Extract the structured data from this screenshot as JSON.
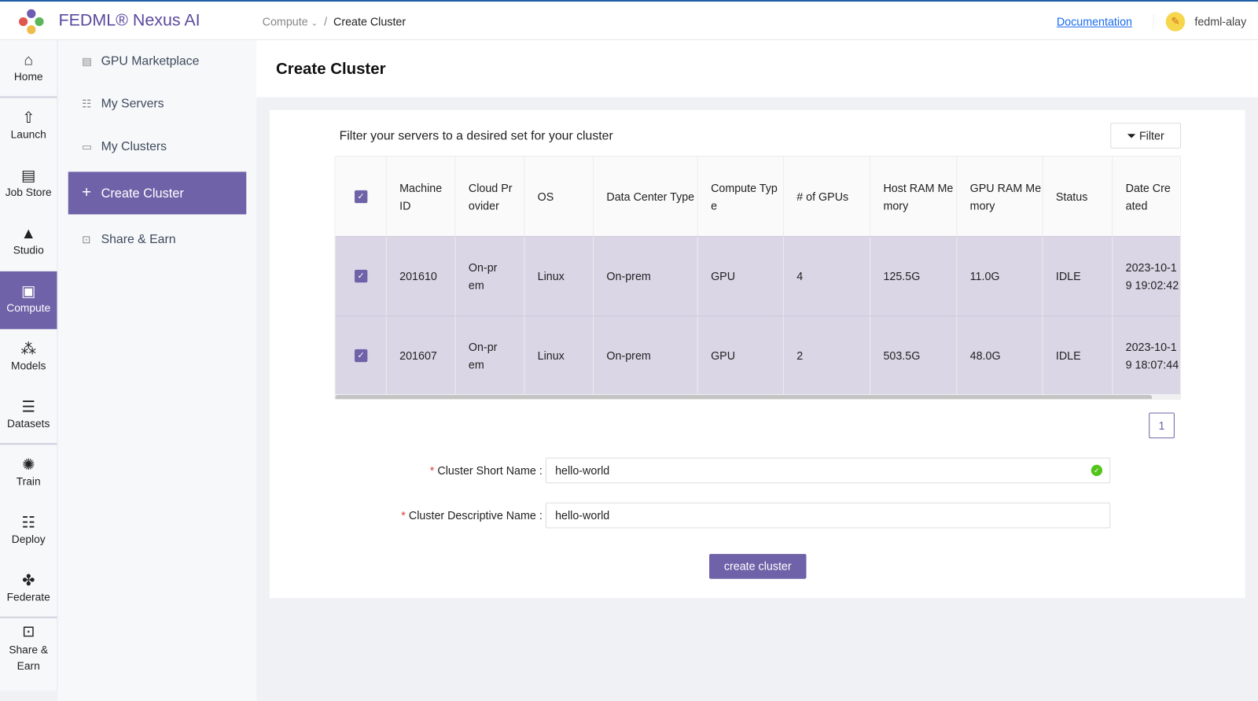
{
  "header": {
    "brand": "FEDML® Nexus AI",
    "breadcrumb": [
      "Compute",
      "Create Cluster"
    ],
    "documentation": "Documentation",
    "username": "fedml-alay"
  },
  "rail": [
    {
      "label": "Home",
      "icon": "home-icon"
    },
    {
      "label": "Launch",
      "icon": "rocket-icon"
    },
    {
      "label": "Job Store",
      "icon": "store-icon"
    },
    {
      "label": "Studio",
      "icon": "studio-icon"
    },
    {
      "label": "Compute",
      "icon": "chip-icon"
    },
    {
      "label": "Models",
      "icon": "cubes-icon"
    },
    {
      "label": "Datasets",
      "icon": "database-icon"
    },
    {
      "label": "Train",
      "icon": "brain-icon"
    },
    {
      "label": "Deploy",
      "icon": "server-icon"
    },
    {
      "label": "Federate",
      "icon": "federate-icon"
    },
    {
      "label": "Share & Earn",
      "icon": "hand-money-icon"
    }
  ],
  "subnav": [
    {
      "label": "GPU Marketplace"
    },
    {
      "label": "My Servers"
    },
    {
      "label": "My Clusters"
    },
    {
      "label": "Create Cluster"
    },
    {
      "label": "Share & Earn"
    }
  ],
  "page": {
    "title": "Create Cluster",
    "filter_title": "Filter your servers to a desired set for your cluster",
    "filter_button": "Filter"
  },
  "table": {
    "columns": [
      "Machine ID",
      "Cloud Provider",
      "OS",
      "Data Center Type",
      "Compute Type",
      "# of GPUs",
      "Host RAM Memory",
      "GPU RAM Memory",
      "Status",
      "Date Created"
    ],
    "rows": [
      [
        "201610",
        "On-prem",
        "Linux",
        "On-prem",
        "GPU",
        "4",
        "125.5G",
        "11.0G",
        "IDLE",
        "2023-10-19 19:02:42"
      ],
      [
        "201607",
        "On-prem",
        "Linux",
        "On-prem",
        "GPU",
        "2",
        "503.5G",
        "48.0G",
        "IDLE",
        "2023-10-19 18:07:44"
      ]
    ],
    "all_selected": true,
    "page": "1"
  },
  "form": {
    "short_name_label": "Cluster Short Name",
    "short_name_value": "hello-world",
    "desc_name_label": "Cluster Descriptive Name",
    "desc_name_value": "hello-world",
    "submit": "create cluster"
  },
  "colors": {
    "accent": "#6f62a8",
    "selected_row": "#dbd6e6",
    "link": "#1a6cf0"
  }
}
